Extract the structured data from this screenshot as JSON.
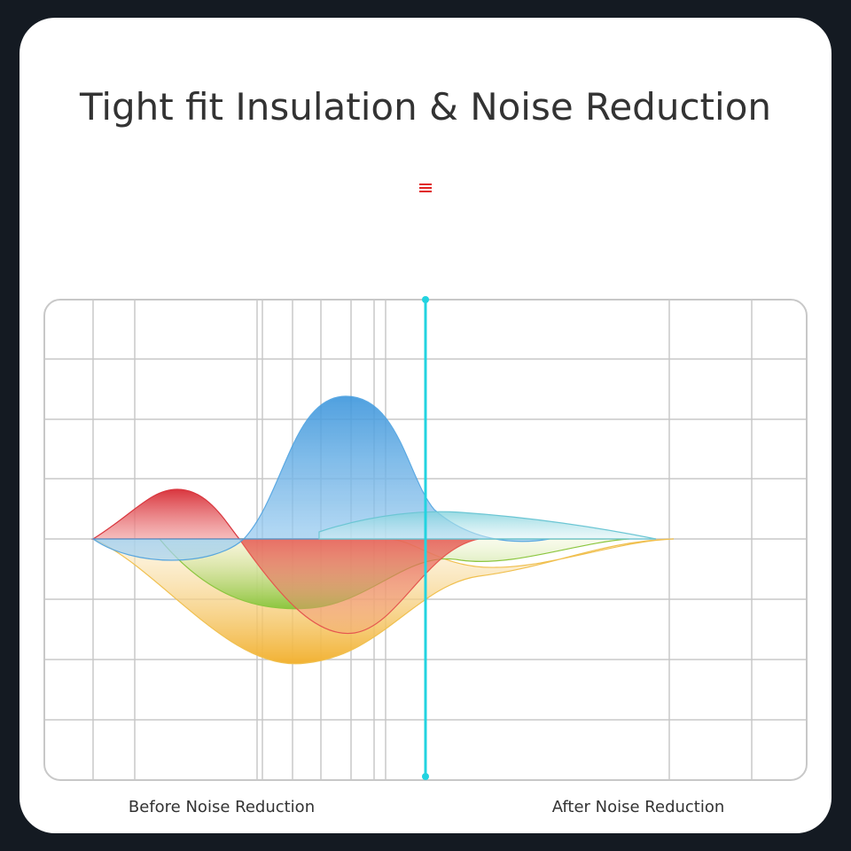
{
  "header": {
    "title": "Tight fit Insulation & Noise Reduction"
  },
  "labels": {
    "before": "Before Noise Reduction",
    "after": "After Noise Reduction"
  }
}
